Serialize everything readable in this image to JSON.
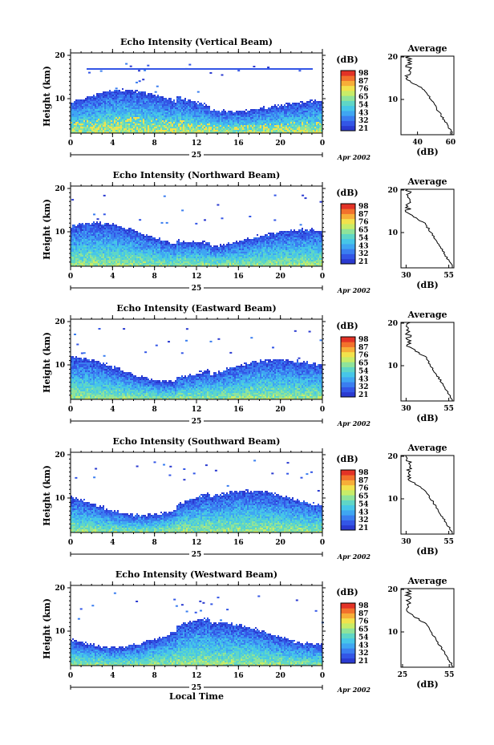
{
  "chart_data": [
    {
      "type": "heatmap",
      "title": "Echo Intensity (Vertical Beam)",
      "ylabel": "Height (km)",
      "y_ticks": [
        "20",
        "10"
      ],
      "x_ticks": [
        "0",
        "4",
        "8",
        "12",
        "16",
        "20",
        "0"
      ],
      "date_day": "25",
      "date_suffix": "Apr 2002",
      "colorbar": {
        "unit": "(dB)",
        "ticks": [
          "98",
          "87",
          "76",
          "65",
          "54",
          "43",
          "32",
          "21"
        ]
      },
      "profile": {
        "title": "Average",
        "xlabel": "(dB)",
        "x_ticks": [
          "40",
          "60"
        ],
        "y_ticks": [
          "20",
          "10"
        ],
        "xlim": [
          30,
          62
        ]
      }
    },
    {
      "type": "heatmap",
      "title": "Echo Intensity (Northward Beam)",
      "ylabel": "Height (km)",
      "y_ticks": [
        "20",
        "10"
      ],
      "x_ticks": [
        "0",
        "4",
        "8",
        "12",
        "16",
        "20",
        "0"
      ],
      "date_day": "25",
      "date_suffix": "Apr 2002",
      "colorbar": {
        "unit": "(dB)",
        "ticks": [
          "98",
          "87",
          "76",
          "65",
          "54",
          "43",
          "32",
          "21"
        ]
      },
      "profile": {
        "title": "Average",
        "xlabel": "(dB)",
        "x_ticks": [
          "30",
          "55"
        ],
        "y_ticks": [
          "20",
          "10"
        ],
        "xlim": [
          27,
          58
        ]
      }
    },
    {
      "type": "heatmap",
      "title": "Echo Intensity (Eastward Beam)",
      "ylabel": "Height (km)",
      "y_ticks": [
        "20",
        "10"
      ],
      "x_ticks": [
        "0",
        "4",
        "8",
        "12",
        "16",
        "20",
        "0"
      ],
      "date_day": "25",
      "date_suffix": "Apr 2002",
      "colorbar": {
        "unit": "(dB)",
        "ticks": [
          "98",
          "87",
          "76",
          "65",
          "54",
          "43",
          "32",
          "21"
        ]
      },
      "profile": {
        "title": "Average",
        "xlabel": "(dB)",
        "x_ticks": [
          "30",
          "55"
        ],
        "y_ticks": [
          "20",
          "10"
        ],
        "xlim": [
          27,
          58
        ]
      }
    },
    {
      "type": "heatmap",
      "title": "Echo Intensity (Southward Beam)",
      "ylabel": "Height (km)",
      "y_ticks": [
        "20",
        "10"
      ],
      "x_ticks": [
        "0",
        "4",
        "8",
        "12",
        "16",
        "20",
        "0"
      ],
      "date_day": "25",
      "date_suffix": "Apr 2002",
      "colorbar": {
        "unit": "(dB)",
        "ticks": [
          "98",
          "87",
          "76",
          "65",
          "54",
          "43",
          "32",
          "21"
        ]
      },
      "profile": {
        "title": "Average",
        "xlabel": "(dB)",
        "x_ticks": [
          "30",
          "55"
        ],
        "y_ticks": [
          "20",
          "10"
        ],
        "xlim": [
          27,
          58
        ]
      }
    },
    {
      "type": "heatmap",
      "title": "Echo Intensity (Westward Beam)",
      "ylabel": "Height (km)",
      "y_ticks": [
        "20",
        "10"
      ],
      "x_ticks": [
        "0",
        "4",
        "8",
        "12",
        "16",
        "20",
        "0"
      ],
      "date_day": "25",
      "date_suffix": "Apr 2002",
      "xlabel": "Local Time",
      "colorbar": {
        "unit": "(dB)",
        "ticks": [
          "98",
          "87",
          "76",
          "65",
          "54",
          "43",
          "32",
          "21"
        ]
      },
      "profile": {
        "title": "Average",
        "xlabel": "(dB)",
        "x_ticks": [
          "25",
          "55"
        ],
        "y_ticks": [
          "20",
          "10"
        ],
        "xlim": [
          24,
          58
        ]
      }
    }
  ],
  "colors": {
    "scale": [
      "#2a3ad0",
      "#3356e6",
      "#3a7ef0",
      "#3fa6f2",
      "#46c6e8",
      "#5fd6c6",
      "#8fe39a",
      "#c8ec68",
      "#f2e24c",
      "#f7ae38",
      "#f2712c",
      "#e23226"
    ],
    "profile_line": "#000000"
  }
}
